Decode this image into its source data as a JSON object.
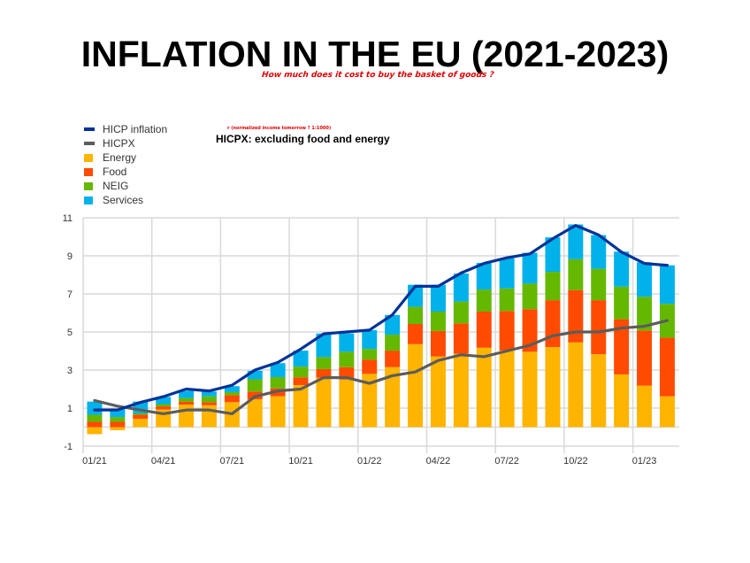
{
  "title": "INFLATION IN THE EU (2021-2023)",
  "handwritten_note": "How much does it cost to buy the basket of goods ?",
  "tiny_note": "r (normalized income tomorrow ? 1:1000)",
  "hicpx_note": "HICPX: excluding food and energy",
  "colors": {
    "hicp": "#003299",
    "hicpx": "#5c5c5c",
    "energy": "#ffb400",
    "food": "#ff4b00",
    "neig": "#65b800",
    "services": "#00b1ea",
    "grid": "#d9d9d9"
  },
  "chart_data": {
    "type": "bar",
    "stacked": true,
    "title": "",
    "xlabel": "",
    "ylabel": "",
    "ylim": [
      -1,
      11
    ],
    "yticks": [
      "11",
      "9",
      "7",
      "5",
      "3",
      "1",
      "-1"
    ],
    "ytick_values": [
      11,
      9,
      7,
      5,
      3,
      1,
      -1
    ],
    "grid": true,
    "legend": "top-left",
    "categories": [
      "01/21",
      "02/21",
      "03/21",
      "04/21",
      "05/21",
      "06/21",
      "07/21",
      "08/21",
      "09/21",
      "10/21",
      "11/21",
      "12/21",
      "01/22",
      "02/22",
      "03/22",
      "04/22",
      "05/22",
      "06/22",
      "07/22",
      "08/22",
      "09/22",
      "10/22",
      "11/22",
      "12/22",
      "01/23",
      "02/23"
    ],
    "xtick_labels": [
      "01/21",
      "04/21",
      "07/21",
      "10/21",
      "01/22",
      "04/22",
      "07/22",
      "10/22",
      "01/23"
    ],
    "series": [
      {
        "name": "Energy",
        "kind": "bar",
        "color_key": "energy",
        "values": [
          -0.37,
          -0.16,
          0.44,
          0.93,
          1.18,
          1.15,
          1.31,
          1.46,
          1.62,
          2.21,
          2.59,
          2.5,
          2.8,
          3.15,
          4.36,
          3.71,
          3.86,
          4.17,
          4.02,
          3.96,
          4.21,
          4.45,
          3.83,
          2.77,
          2.18,
          1.62
        ]
      },
      {
        "name": "Food",
        "kind": "bar",
        "color_key": "food",
        "values": [
          0.28,
          0.28,
          0.21,
          0.16,
          0.16,
          0.16,
          0.37,
          0.41,
          0.42,
          0.41,
          0.46,
          0.65,
          0.75,
          0.87,
          1.06,
          1.34,
          1.59,
          1.9,
          2.08,
          2.24,
          2.46,
          2.75,
          2.84,
          2.9,
          2.9,
          3.08
        ]
      },
      {
        "name": "NEIG",
        "kind": "bar",
        "color_key": "neig",
        "values": [
          0.37,
          0.25,
          0.07,
          0.12,
          0.19,
          0.31,
          0.16,
          0.64,
          0.59,
          0.56,
          0.63,
          0.81,
          0.56,
          0.84,
          0.9,
          1.02,
          1.15,
          1.16,
          1.19,
          1.34,
          1.49,
          1.62,
          1.65,
          1.71,
          1.77,
          1.78
        ]
      },
      {
        "name": "Services",
        "kind": "bar",
        "color_key": "services",
        "values": [
          0.69,
          0.44,
          0.62,
          0.38,
          0.37,
          0.25,
          0.31,
          0.45,
          0.73,
          0.84,
          1.24,
          0.96,
          0.99,
          1.03,
          1.16,
          1.41,
          1.47,
          1.4,
          1.59,
          1.62,
          1.81,
          1.83,
          1.77,
          1.84,
          1.81,
          2.02
        ]
      },
      {
        "name": "HICP inflation",
        "kind": "line",
        "color_key": "hicp",
        "values": [
          0.9,
          0.9,
          1.3,
          1.6,
          2.0,
          1.9,
          2.2,
          3.0,
          3.4,
          4.1,
          4.9,
          5.0,
          5.1,
          5.9,
          7.4,
          7.4,
          8.1,
          8.6,
          8.9,
          9.1,
          9.9,
          10.6,
          10.1,
          9.2,
          8.6,
          8.5
        ]
      },
      {
        "name": "HICPX",
        "kind": "line",
        "color_key": "hicpx",
        "values": [
          1.4,
          1.1,
          0.9,
          0.7,
          0.9,
          0.9,
          0.7,
          1.6,
          1.9,
          2.0,
          2.6,
          2.6,
          2.3,
          2.7,
          2.9,
          3.5,
          3.8,
          3.7,
          4.0,
          4.3,
          4.8,
          5.0,
          5.0,
          5.2,
          5.3,
          5.6
        ]
      }
    ]
  },
  "legend": [
    {
      "label": "HICP inflation",
      "color_key": "hicp",
      "shape": "line"
    },
    {
      "label": "HICPX",
      "color_key": "hicpx",
      "shape": "line"
    },
    {
      "label": "Energy",
      "color_key": "energy",
      "shape": "box"
    },
    {
      "label": "Food",
      "color_key": "food",
      "shape": "box"
    },
    {
      "label": "NEIG",
      "color_key": "neig",
      "shape": "box"
    },
    {
      "label": "Services",
      "color_key": "services",
      "shape": "box"
    }
  ]
}
